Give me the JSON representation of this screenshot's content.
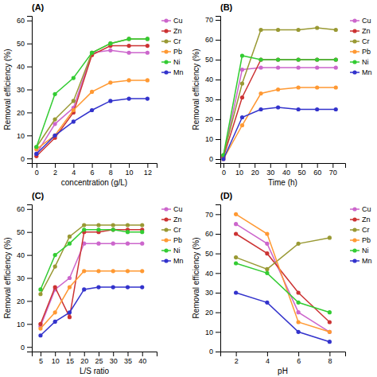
{
  "chart_data": [
    {
      "type": "line",
      "title": "(A)",
      "xlabel": "concentration (g/L)",
      "ylabel": "Removal efficiency (%)",
      "xlim": [
        -0.5,
        13
      ],
      "ylim": [
        -2,
        62
      ],
      "xticks": [
        0,
        2,
        4,
        6,
        8,
        10,
        12
      ],
      "yticks": [
        0,
        10,
        20,
        30,
        40,
        50,
        60
      ],
      "x": [
        0,
        2,
        4,
        6,
        8,
        10,
        12
      ],
      "marker": "circle",
      "legend": "right",
      "grid": false,
      "series": [
        {
          "name": "Cu",
          "color": "#cc66cc",
          "values": [
            2,
            15,
            22,
            46,
            47,
            46,
            46
          ]
        },
        {
          "name": "Zn",
          "color": "#cc3333",
          "values": [
            1,
            9,
            20,
            45,
            49,
            49,
            49
          ]
        },
        {
          "name": "Cr",
          "color": "#999933",
          "values": [
            5,
            17,
            25,
            46,
            50,
            52,
            52
          ]
        },
        {
          "name": "Pb",
          "color": "#ff9933",
          "values": [
            4,
            10,
            21,
            29,
            33,
            34,
            34
          ]
        },
        {
          "name": "Ni",
          "color": "#33cc33",
          "values": [
            5,
            28,
            35,
            46,
            50,
            52,
            52
          ]
        },
        {
          "name": "Mn",
          "color": "#3333cc",
          "values": [
            2,
            10,
            16,
            21,
            25,
            26,
            26
          ]
        }
      ]
    },
    {
      "type": "line",
      "title": "(B)",
      "xlabel": "Time (h)",
      "ylabel": "Removal efficiency (%)",
      "xlim": [
        -2,
        78
      ],
      "ylim": [
        -2,
        72
      ],
      "xticks": [
        0,
        10,
        20,
        30,
        40,
        50,
        60,
        70
      ],
      "yticks": [
        0,
        10,
        20,
        30,
        40,
        50,
        60,
        70
      ],
      "x": [
        0,
        12,
        24,
        35,
        48,
        60,
        72
      ],
      "marker": "circle",
      "legend": "right",
      "grid": false,
      "series": [
        {
          "name": "Cu",
          "color": "#cc66cc",
          "values": [
            1,
            45,
            46,
            46,
            46,
            46,
            46
          ]
        },
        {
          "name": "Zn",
          "color": "#cc3333",
          "values": [
            1,
            31,
            50,
            50,
            50,
            50,
            50
          ]
        },
        {
          "name": "Cr",
          "color": "#999933",
          "values": [
            2,
            38,
            65,
            65,
            65,
            66,
            65
          ]
        },
        {
          "name": "Pb",
          "color": "#ff9933",
          "values": [
            0,
            17,
            33,
            35,
            36,
            36,
            36
          ]
        },
        {
          "name": "Ni",
          "color": "#33cc33",
          "values": [
            2,
            52,
            50,
            50,
            50,
            50,
            50
          ]
        },
        {
          "name": "Mn",
          "color": "#3333cc",
          "values": [
            0,
            21,
            25,
            26,
            25,
            25,
            25
          ]
        }
      ]
    },
    {
      "type": "line",
      "title": "(C)",
      "xlabel": "L/S ratio",
      "ylabel": "Removal efficiency (%)",
      "xlim": [
        2,
        45
      ],
      "ylim": [
        -2,
        62
      ],
      "xticks": [
        5,
        10,
        15,
        20,
        25,
        30,
        35,
        40
      ],
      "yticks": [
        0,
        10,
        20,
        30,
        40,
        50,
        60
      ],
      "x": [
        5,
        10,
        15,
        20,
        25,
        30,
        35,
        40
      ],
      "marker": "circle",
      "legend": "right",
      "grid": false,
      "series": [
        {
          "name": "Cu",
          "color": "#cc66cc",
          "values": [
            9,
            25,
            30,
            45,
            45,
            45,
            45,
            45
          ]
        },
        {
          "name": "Zn",
          "color": "#cc3333",
          "values": [
            10,
            26,
            13,
            50,
            50,
            51,
            51,
            51
          ]
        },
        {
          "name": "Cr",
          "color": "#999933",
          "values": [
            23,
            35,
            48,
            53,
            53,
            53,
            53,
            53
          ]
        },
        {
          "name": "Pb",
          "color": "#ff9933",
          "values": [
            8,
            15,
            26,
            33,
            33,
            33,
            33,
            33
          ]
        },
        {
          "name": "Ni",
          "color": "#33cc33",
          "values": [
            25,
            40,
            45,
            51,
            51,
            51,
            50,
            50
          ]
        },
        {
          "name": "Mn",
          "color": "#3333cc",
          "values": [
            5,
            11,
            15,
            25,
            26,
            26,
            26,
            26
          ]
        }
      ]
    },
    {
      "type": "line",
      "title": "(D)",
      "xlabel": "pH",
      "ylabel": "Removal efficiency (%)",
      "xlim": [
        1,
        9
      ],
      "ylim": [
        0,
        75
      ],
      "xticks": [
        2,
        4,
        6,
        8
      ],
      "yticks": [
        0,
        10,
        20,
        30,
        40,
        50,
        60,
        70
      ],
      "x": [
        2,
        4,
        6,
        8
      ],
      "marker": "circle",
      "legend": "right",
      "grid": false,
      "series": [
        {
          "name": "Cu",
          "color": "#cc66cc",
          "values": [
            65,
            55,
            20,
            10
          ]
        },
        {
          "name": "Zn",
          "color": "#cc3333",
          "values": [
            60,
            50,
            30,
            15
          ]
        },
        {
          "name": "Cr",
          "color": "#999933",
          "values": [
            48,
            42,
            55,
            58
          ]
        },
        {
          "name": "Pb",
          "color": "#ff9933",
          "values": [
            70,
            60,
            15,
            10
          ]
        },
        {
          "name": "Ni",
          "color": "#33cc33",
          "values": [
            45,
            40,
            25,
            20
          ]
        },
        {
          "name": "Mn",
          "color": "#3333cc",
          "values": [
            30,
            25,
            10,
            5
          ]
        }
      ]
    }
  ]
}
